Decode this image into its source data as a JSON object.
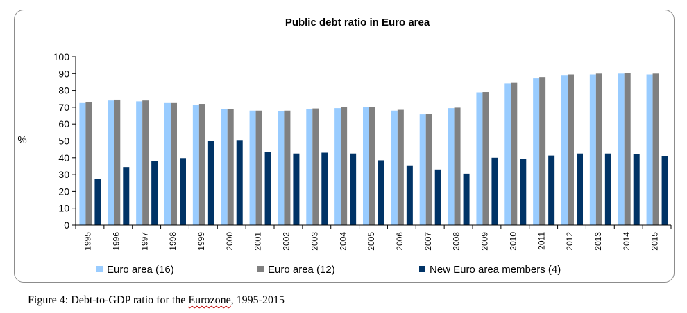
{
  "chart_data": {
    "type": "bar",
    "title": "Public debt ratio in Euro area",
    "ylabel": "%",
    "xlabel": "",
    "ylim": [
      0,
      100
    ],
    "yticks": [
      0,
      10,
      20,
      30,
      40,
      50,
      60,
      70,
      80,
      90,
      100
    ],
    "grid": false,
    "legend_position": "bottom",
    "categories": [
      "1995",
      "1996",
      "1997",
      "1998",
      "1999",
      "2000",
      "2001",
      "2002",
      "2003",
      "2004",
      "2005",
      "2006",
      "2007",
      "2008",
      "2009",
      "2010",
      "2011",
      "2012",
      "2013",
      "2014",
      "2015"
    ],
    "series": [
      {
        "name": "Euro area (16)",
        "color": "#99ccff",
        "values": [
          72.5,
          74.0,
          73.5,
          72.5,
          71.5,
          69.0,
          68.0,
          67.8,
          69.0,
          69.5,
          70.0,
          68.0,
          65.8,
          69.5,
          78.8,
          84.2,
          87.2,
          88.8,
          89.5,
          90.0,
          89.5
        ]
      },
      {
        "name": "Euro area (12)",
        "color": "#808080",
        "values": [
          73.0,
          74.5,
          74.0,
          72.5,
          72.0,
          69.0,
          68.0,
          68.0,
          69.3,
          70.0,
          70.3,
          68.5,
          66.0,
          69.8,
          79.0,
          84.5,
          88.0,
          89.5,
          90.0,
          90.2,
          90.0
        ]
      },
      {
        "name": "New Euro area members (4)",
        "color": "#003366",
        "values": [
          27.5,
          34.5,
          38.0,
          39.8,
          49.8,
          50.5,
          43.5,
          42.5,
          43.0,
          42.5,
          38.5,
          35.5,
          33.0,
          30.5,
          40.0,
          39.5,
          41.3,
          42.5,
          42.5,
          42.0,
          41.0
        ]
      }
    ]
  },
  "caption": {
    "prefix": "Figure 4: Debt-to-GDP ratio for the ",
    "underlined": "Eurozone",
    "suffix": ", 1995-2015"
  }
}
